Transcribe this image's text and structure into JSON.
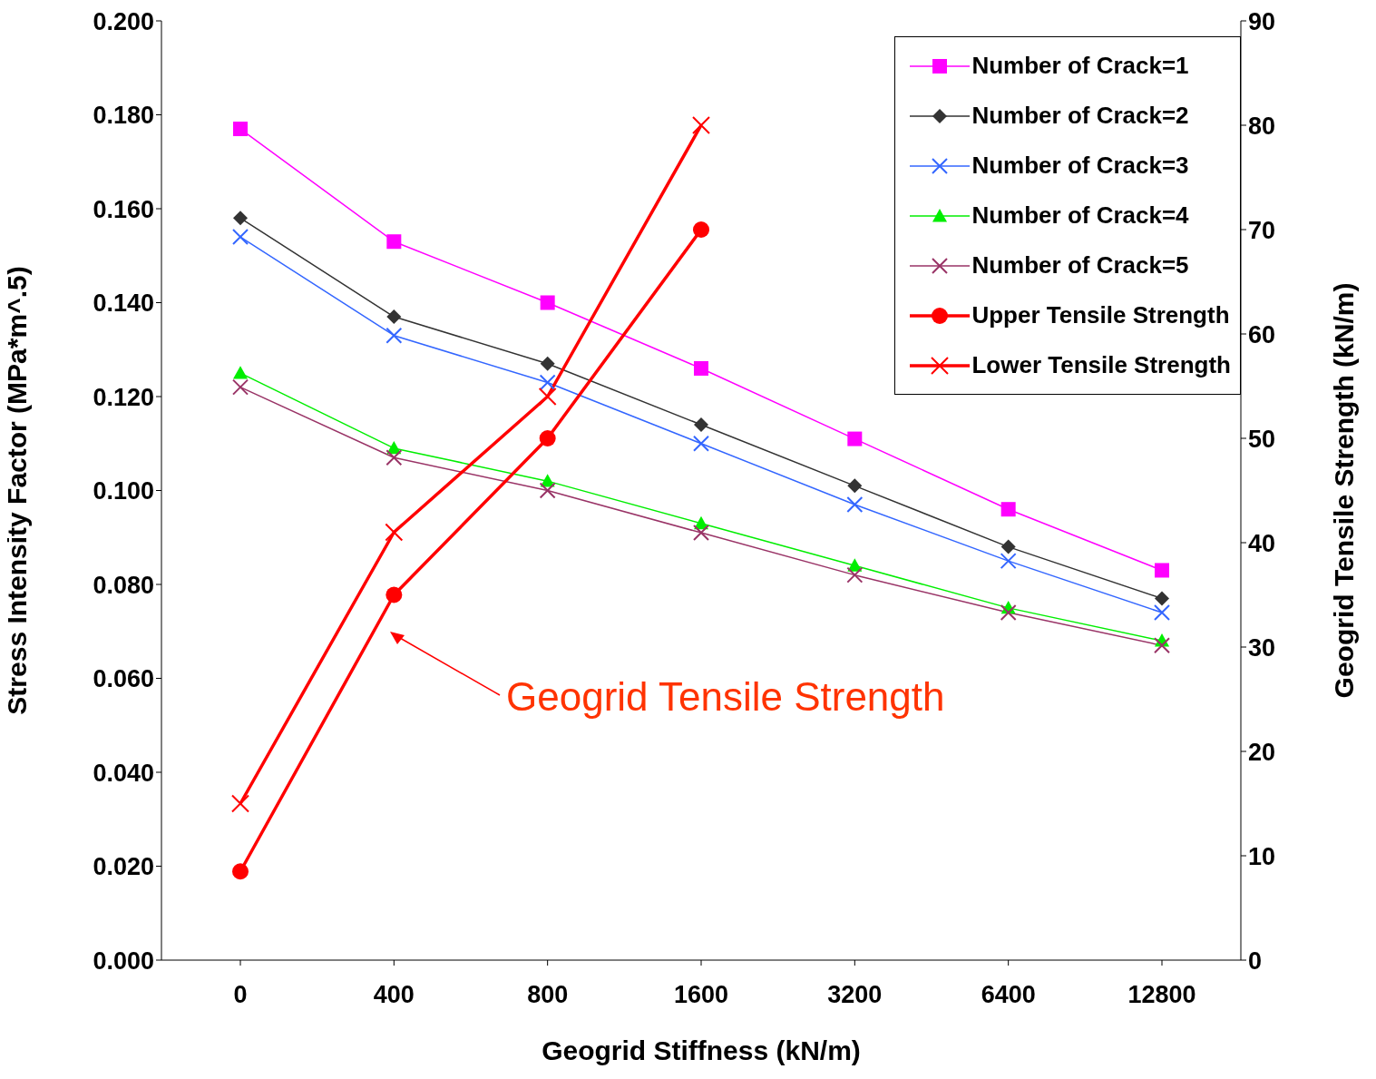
{
  "chart_data": {
    "type": "line",
    "xlabel": "Geogrid Stiffness (kN/m)",
    "ylabel": "Stress Intensity Factor (MPa*m^.5)",
    "y2label": "Geogrid Tensile Strength (kN/m)",
    "categories": [
      "0",
      "400",
      "800",
      "1600",
      "3200",
      "6400",
      "12800"
    ],
    "series": [
      {
        "name": "Number of Crack=1",
        "color": "#ff00ff",
        "marker": "square",
        "values": [
          0.177,
          0.153,
          0.14,
          0.126,
          0.111,
          0.096,
          0.083
        ]
      },
      {
        "name": "Number of Crack=2",
        "color": "#333333",
        "marker": "diamond",
        "values": [
          0.158,
          0.137,
          0.127,
          0.114,
          0.101,
          0.088,
          0.077
        ]
      },
      {
        "name": "Number of Crack=3",
        "color": "#3366ff",
        "marker": "cross",
        "values": [
          0.154,
          0.133,
          0.123,
          0.11,
          0.097,
          0.085,
          0.074
        ]
      },
      {
        "name": "Number of Crack=4",
        "color": "#00ee00",
        "marker": "triangle",
        "values": [
          0.125,
          0.109,
          0.102,
          0.093,
          0.084,
          0.075,
          0.068
        ]
      },
      {
        "name": "Number of Crack=5",
        "color": "#993366",
        "marker": "cross",
        "values": [
          0.122,
          0.107,
          0.1,
          0.091,
          0.082,
          0.074,
          0.067
        ]
      },
      {
        "name": "Upper Tensile Strength",
        "color": "#ff0000",
        "marker": "circle",
        "axis": "y2",
        "values": [
          8.5,
          35,
          50,
          70,
          null,
          null,
          null
        ]
      },
      {
        "name": "Lower Tensile Strength",
        "color": "#ff0000",
        "marker": "cross",
        "axis": "y2",
        "values": [
          15,
          41,
          54,
          80,
          null,
          null,
          null
        ]
      }
    ],
    "ylim": [
      0,
      0.2
    ],
    "yticks": [
      {
        "value": 0,
        "label": "0.000"
      },
      {
        "value": 0.02,
        "label": "0.020"
      },
      {
        "value": 0.04,
        "label": "0.040"
      },
      {
        "value": 0.06,
        "label": "0.060"
      },
      {
        "value": 0.08,
        "label": "0.080"
      },
      {
        "value": 0.1,
        "label": "0.100"
      },
      {
        "value": 0.12,
        "label": "0.120"
      },
      {
        "value": 0.14,
        "label": "0.140"
      },
      {
        "value": 0.16,
        "label": "0.160"
      },
      {
        "value": 0.18,
        "label": "0.180"
      },
      {
        "value": 0.2,
        "label": "0.200"
      }
    ],
    "y2lim": [
      0,
      90
    ],
    "y2ticks": [
      0,
      10,
      20,
      30,
      40,
      50,
      60,
      70,
      80,
      90
    ],
    "annotations": [
      "Geogrid Tensile Strength"
    ],
    "legend": "top right",
    "grid": false,
    "line_style": "solid"
  }
}
